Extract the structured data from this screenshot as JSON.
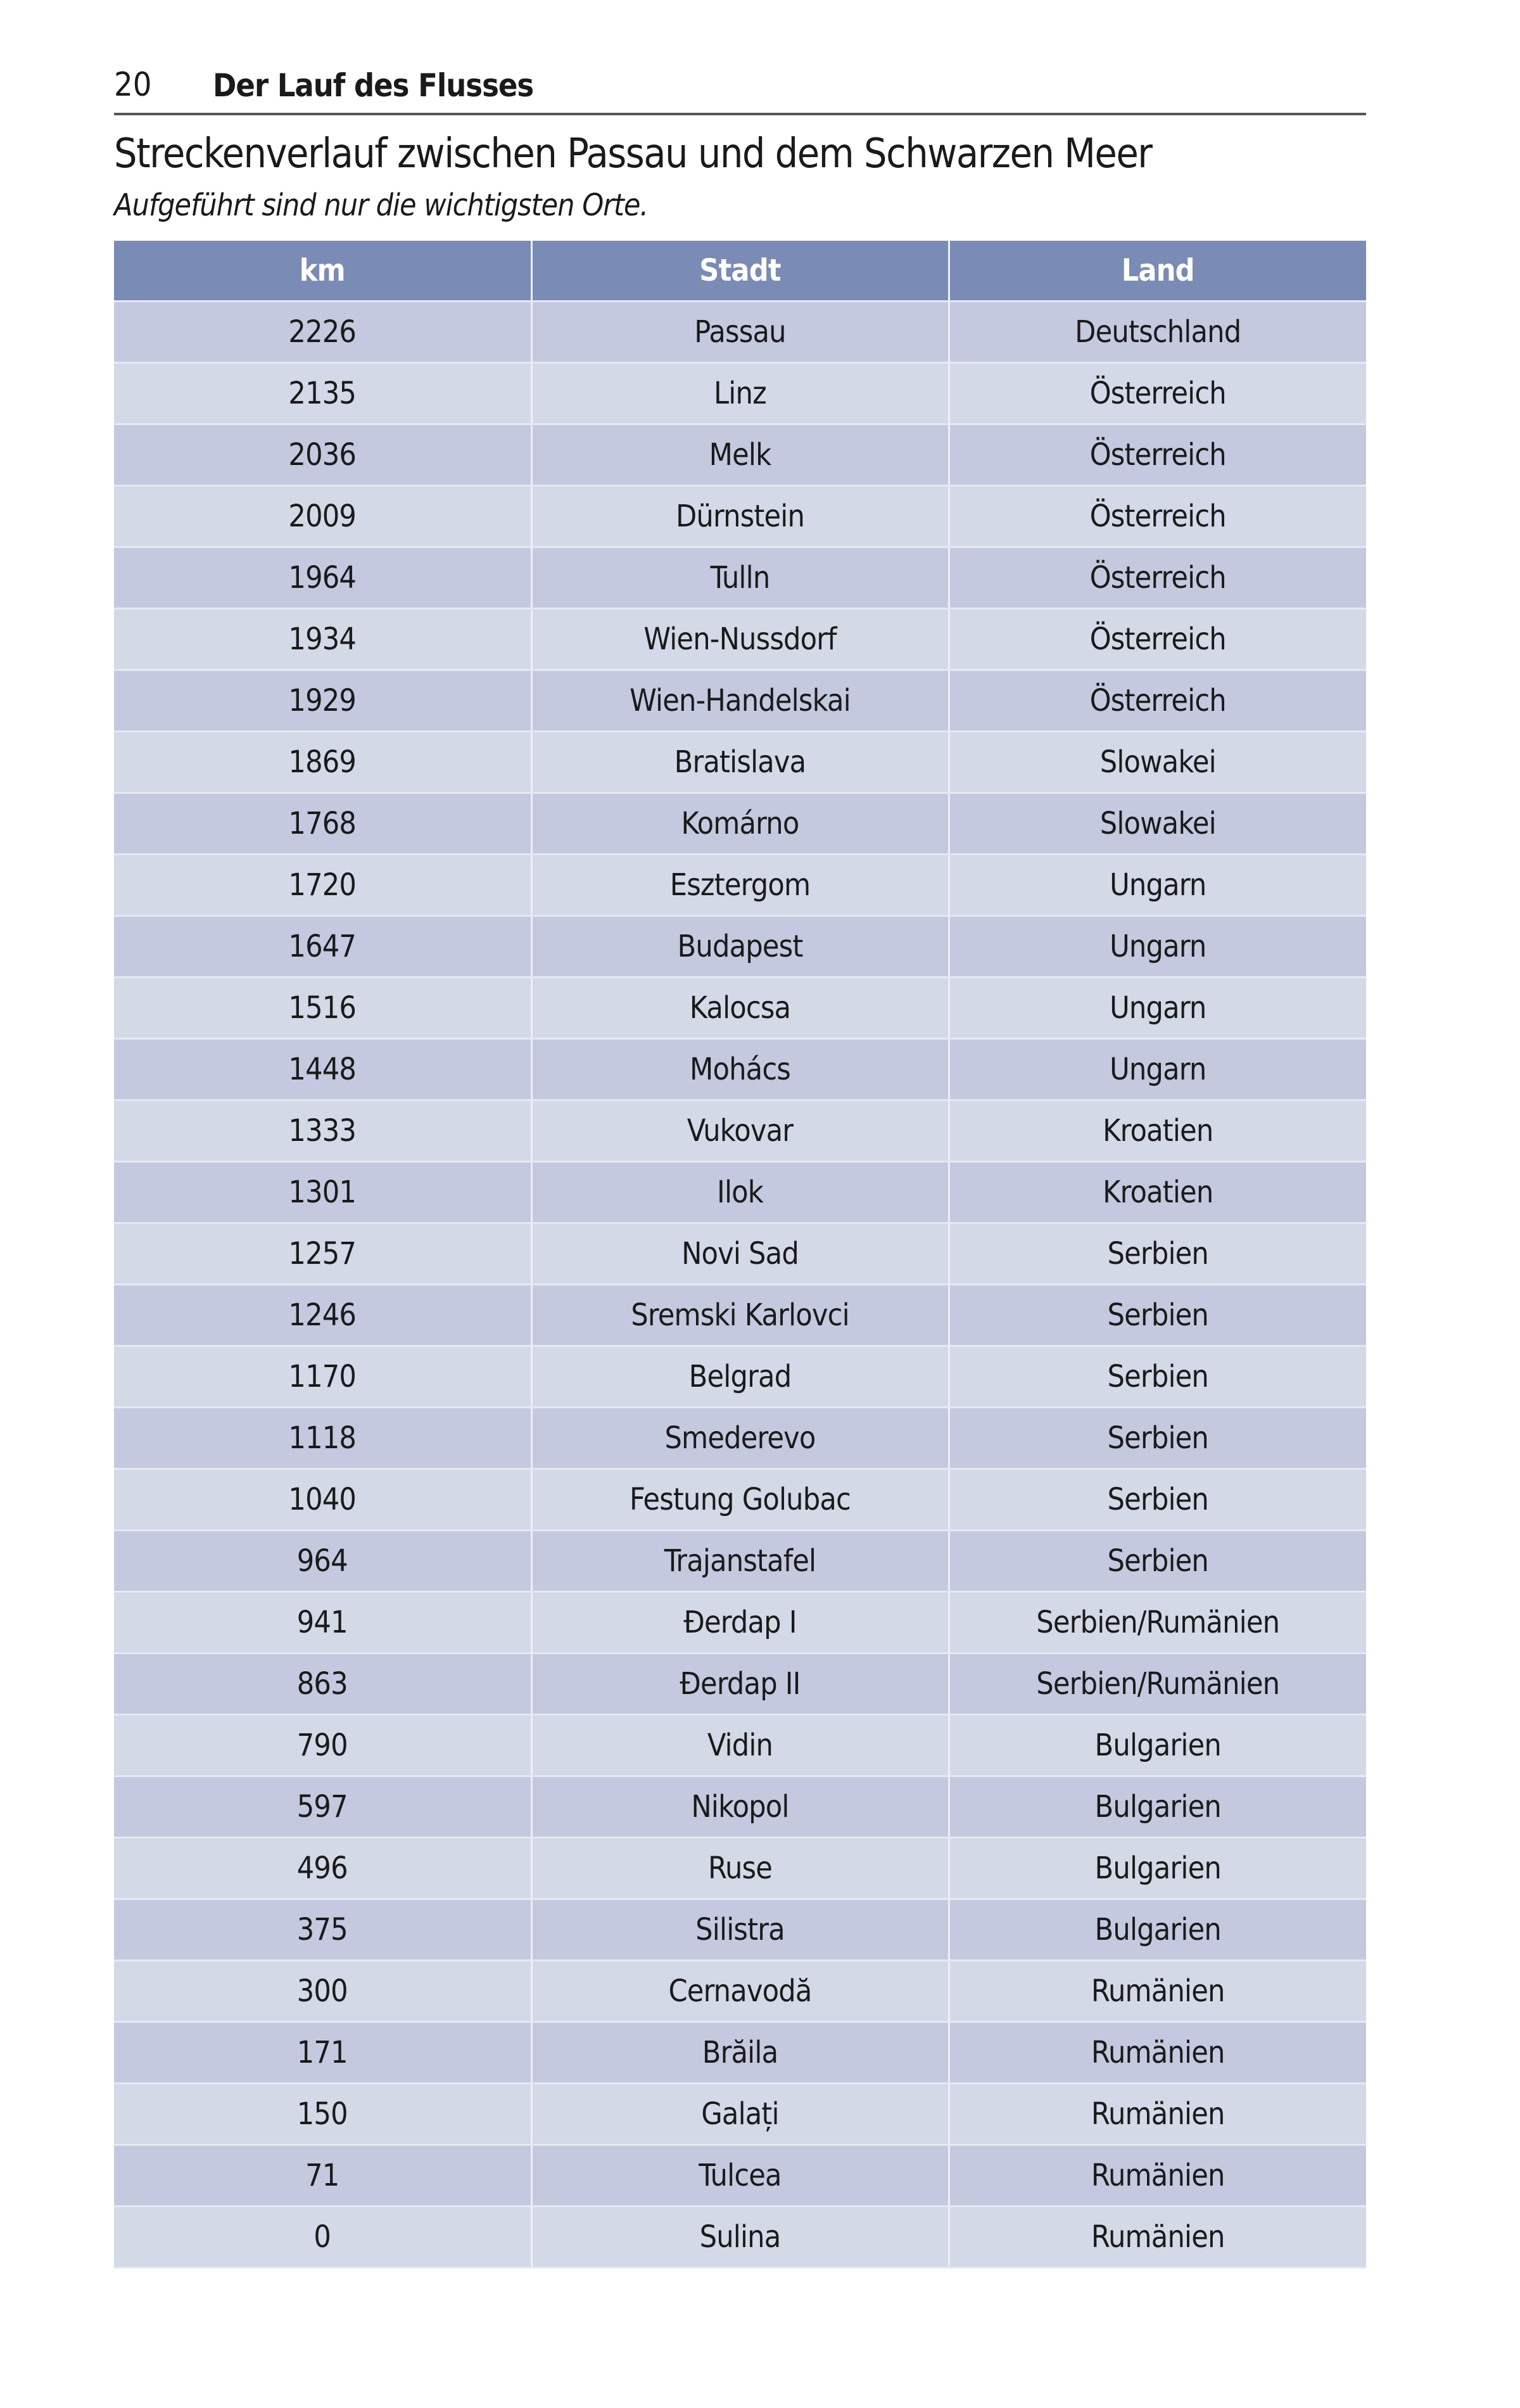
{
  "header": {
    "page_number": "20",
    "chapter_title": "Der Lauf des Flusses"
  },
  "heading": "Streckenverlauf zwischen Passau und dem Schwarzen Meer",
  "subtitle": "Aufgeführt sind nur die wichtigsten Orte.",
  "colors": {
    "header_bg": "#7a8bb5",
    "row_dark": "#c4c9e0",
    "row_light": "#d4d9e8"
  },
  "table": {
    "columns": [
      "km",
      "Stadt",
      "Land"
    ],
    "rows": [
      [
        "2226",
        "Passau",
        "Deutschland"
      ],
      [
        "2135",
        "Linz",
        "Österreich"
      ],
      [
        "2036",
        "Melk",
        "Österreich"
      ],
      [
        "2009",
        "Dürnstein",
        "Österreich"
      ],
      [
        "1964",
        "Tulln",
        "Österreich"
      ],
      [
        "1934",
        "Wien-Nussdorf",
        "Österreich"
      ],
      [
        "1929",
        "Wien-Handelskai",
        "Österreich"
      ],
      [
        "1869",
        "Bratislava",
        "Slowakei"
      ],
      [
        "1768",
        "Komárno",
        "Slowakei"
      ],
      [
        "1720",
        "Esztergom",
        "Ungarn"
      ],
      [
        "1647",
        "Budapest",
        "Ungarn"
      ],
      [
        "1516",
        "Kalocsa",
        "Ungarn"
      ],
      [
        "1448",
        "Mohács",
        "Ungarn"
      ],
      [
        "1333",
        "Vukovar",
        "Kroatien"
      ],
      [
        "1301",
        "Ilok",
        "Kroatien"
      ],
      [
        "1257",
        "Novi Sad",
        "Serbien"
      ],
      [
        "1246",
        "Sremski Karlovci",
        "Serbien"
      ],
      [
        "1170",
        "Belgrad",
        "Serbien"
      ],
      [
        "1118",
        "Smederevo",
        "Serbien"
      ],
      [
        "1040",
        "Festung Golubac",
        "Serbien"
      ],
      [
        "964",
        "Trajanstafel",
        "Serbien"
      ],
      [
        "941",
        "Đerdap I",
        "Serbien/Rumänien"
      ],
      [
        "863",
        "Đerdap II",
        "Serbien/Rumänien"
      ],
      [
        "790",
        "Vidin",
        "Bulgarien"
      ],
      [
        "597",
        "Nikopol",
        "Bulgarien"
      ],
      [
        "496",
        "Ruse",
        "Bulgarien"
      ],
      [
        "375",
        "Silistra",
        "Bulgarien"
      ],
      [
        "300",
        "Cernavodă",
        "Rumänien"
      ],
      [
        "171",
        "Brăila",
        "Rumänien"
      ],
      [
        "150",
        "Galați",
        "Rumänien"
      ],
      [
        "71",
        "Tulcea",
        "Rumänien"
      ],
      [
        "0",
        "Sulina",
        "Rumänien"
      ]
    ]
  }
}
